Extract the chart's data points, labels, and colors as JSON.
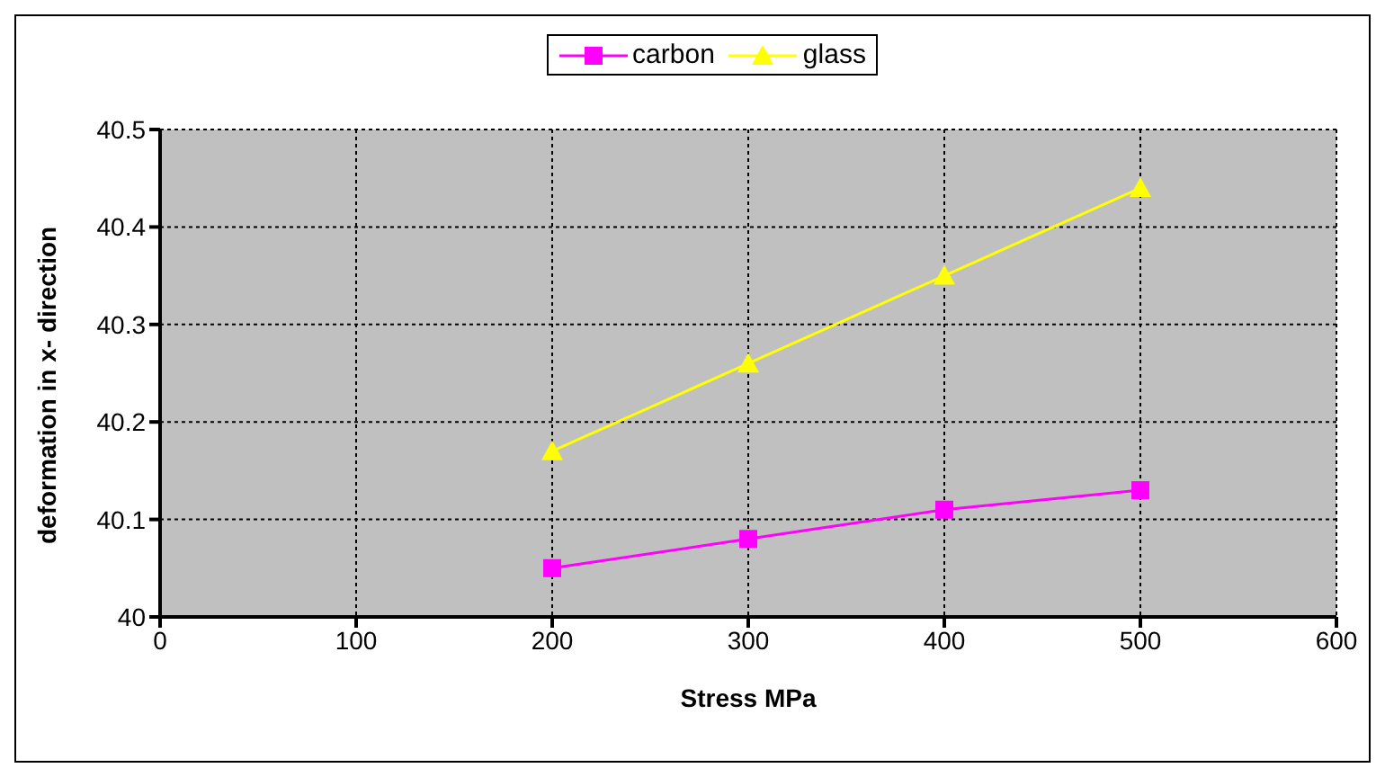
{
  "chart_data": {
    "type": "line",
    "xlabel": "Stress MPa",
    "ylabel": "deformation in x- direction",
    "x": [
      200,
      300,
      400,
      500
    ],
    "series": [
      {
        "name": "carbon",
        "color": "#ff00ff",
        "marker": "square",
        "values": [
          40.05,
          40.08,
          40.11,
          40.13
        ]
      },
      {
        "name": "glass",
        "color": "#ffff00",
        "marker": "triangle",
        "values": [
          40.17,
          40.26,
          40.35,
          40.44
        ]
      }
    ],
    "xlim": [
      0,
      600
    ],
    "xticks": [
      0,
      100,
      200,
      300,
      400,
      500,
      600
    ],
    "ylim": [
      40,
      40.5
    ],
    "yticks": [
      40,
      40.1,
      40.2,
      40.3,
      40.4,
      40.5
    ],
    "grid": true,
    "legend": "top"
  }
}
